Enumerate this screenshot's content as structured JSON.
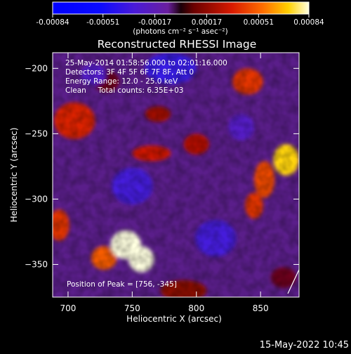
{
  "chart_data": {
    "type": "heatmap",
    "title": "Reconstructed RHESSI Image",
    "xlabel": "Heliocentric X (arcsec)",
    "ylabel": "Heliocentric Y (arcsec)",
    "xlim": [
      688,
      880
    ],
    "ylim": [
      -375,
      -188
    ],
    "x_ticks": [
      700,
      750,
      800,
      850
    ],
    "y_ticks": [
      -200,
      -250,
      -300,
      -350
    ],
    "colorbar": {
      "min": -0.00084,
      "max": 0.00084,
      "ticks": [
        -0.00084,
        -0.00051,
        -0.00017,
        0.00017,
        0.00051,
        0.00084
      ],
      "tick_labels": [
        "-0.00084",
        "-0.00051",
        "-0.00017",
        "0.00017",
        "0.00051",
        "0.00084"
      ],
      "unit_label": "(photons cm⁻² s⁻¹ asec⁻²)"
    },
    "annotations": [
      "25-May-2014 01:58:56.000 to 02:01:16.000",
      "Detectors: 3F 4F 5F 6F 7F 8F, Att 0",
      "Energy Range: 12.0 - 25.0 keV",
      "Clean     Total counts: 6.35E+03"
    ],
    "peak_label": "Position of Peak = [756, -345]",
    "peak": [
      756,
      -345
    ],
    "sources": [
      {
        "x": 745,
        "y": -335,
        "level": 0.00084,
        "rx": 12,
        "ry": 11
      },
      {
        "x": 757,
        "y": -346,
        "level": 0.00084,
        "rx": 10,
        "ry": 10
      },
      {
        "x": 728,
        "y": -345,
        "level": 0.0005,
        "rx": 10,
        "ry": 9
      },
      {
        "x": 870,
        "y": -270,
        "level": 0.00072,
        "rx": 10,
        "ry": 12
      },
      {
        "x": 853,
        "y": -285,
        "level": 0.00045,
        "rx": 8,
        "ry": 14
      },
      {
        "x": 845,
        "y": -305,
        "level": 0.0004,
        "rx": 7,
        "ry": 10
      },
      {
        "x": 840,
        "y": -210,
        "level": 0.0004,
        "rx": 12,
        "ry": 10
      },
      {
        "x": 705,
        "y": -240,
        "level": 0.00035,
        "rx": 16,
        "ry": 14
      },
      {
        "x": 765,
        "y": -265,
        "level": 0.00032,
        "rx": 15,
        "ry": 6
      },
      {
        "x": 770,
        "y": -235,
        "level": 0.00022,
        "rx": 10,
        "ry": 6
      },
      {
        "x": 800,
        "y": -258,
        "level": 0.00025,
        "rx": 10,
        "ry": 8
      },
      {
        "x": 693,
        "y": -320,
        "level": 0.0004,
        "rx": 8,
        "ry": 12
      },
      {
        "x": 790,
        "y": -370,
        "level": 0.00018,
        "rx": 18,
        "ry": 8
      },
      {
        "x": 868,
        "y": -360,
        "level": 0.0001,
        "rx": 10,
        "ry": 8
      },
      {
        "x": 730,
        "y": -210,
        "level": 0.0001,
        "rx": 10,
        "ry": 8
      },
      {
        "x": 780,
        "y": -200,
        "level": -0.00035,
        "rx": 20,
        "ry": 12
      },
      {
        "x": 750,
        "y": -290,
        "level": -0.0003,
        "rx": 16,
        "ry": 14
      },
      {
        "x": 815,
        "y": -330,
        "level": -0.0003,
        "rx": 16,
        "ry": 14
      },
      {
        "x": 720,
        "y": -205,
        "level": -0.00022,
        "rx": 10,
        "ry": 8
      },
      {
        "x": 835,
        "y": -245,
        "level": -0.0002,
        "rx": 10,
        "ry": 10
      }
    ],
    "footer_date": "15-May-2022 10:45"
  }
}
